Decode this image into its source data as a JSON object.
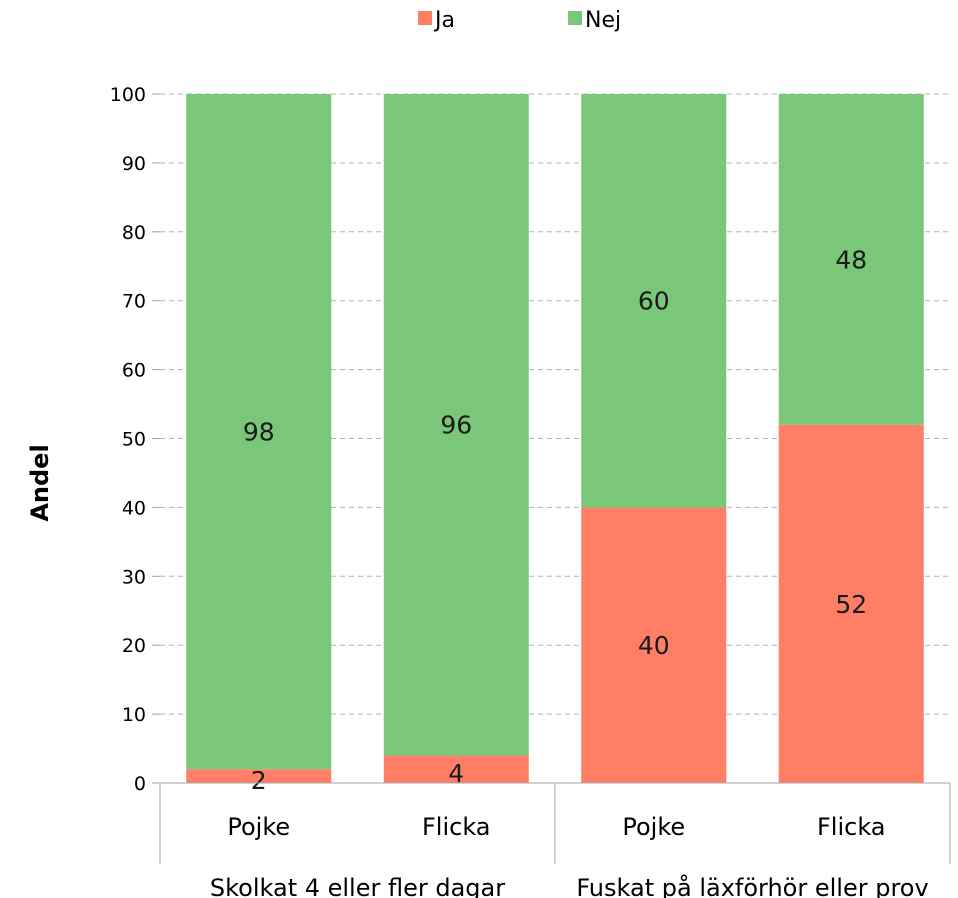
{
  "chart_data": {
    "type": "bar",
    "stacked": true,
    "groups": [
      {
        "label": "Skolkat 4 eller fler dagar",
        "categories": [
          "Pojke",
          "Flicka"
        ]
      },
      {
        "label": "Fuskat på läxförhör eller prov",
        "categories": [
          "Pojke",
          "Flicka"
        ]
      }
    ],
    "categories": [
      "Pojke",
      "Flicka",
      "Pojke",
      "Flicka"
    ],
    "series": [
      {
        "name": "Ja",
        "color": "#ff7f66",
        "values": [
          2,
          4,
          40,
          52
        ]
      },
      {
        "name": "Nej",
        "color": "#7ac77a",
        "values": [
          98,
          96,
          60,
          48
        ]
      }
    ],
    "title": "",
    "xlabel": "",
    "ylabel": "Andel",
    "ylim": [
      0,
      100
    ],
    "yticks": [
      0,
      10,
      20,
      30,
      40,
      50,
      60,
      70,
      80,
      90,
      100
    ],
    "grid": "dashed horizontal",
    "legend_position": "top"
  }
}
